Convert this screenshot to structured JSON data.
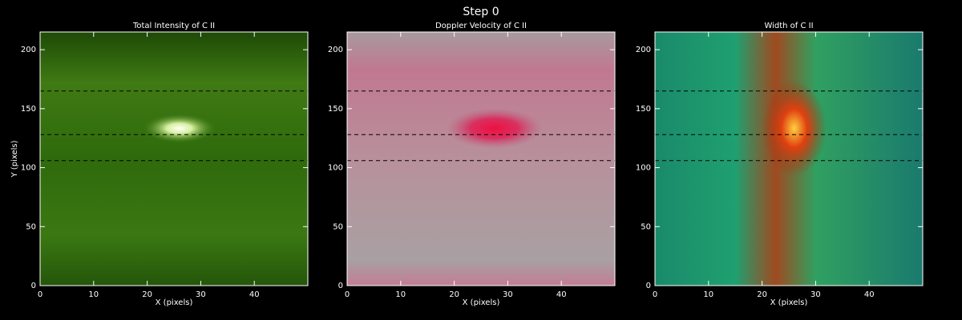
{
  "title": "Step 0",
  "chart_data": [
    {
      "type": "image",
      "title": "Total Intensity of C II",
      "xlabel": "X (pixels)",
      "ylabel": "Y (pixels)",
      "xlim": [
        0,
        50
      ],
      "ylim": [
        0,
        215
      ],
      "xticks": [
        0,
        10,
        20,
        30,
        40
      ],
      "yticks": [
        0,
        50,
        100,
        150,
        200
      ],
      "hlines": [
        165,
        128,
        106
      ]
    },
    {
      "type": "image",
      "title": "Doppler Velocity of C II",
      "xlabel": "X (pixels)",
      "xlim": [
        0,
        50
      ],
      "ylim": [
        0,
        215
      ],
      "xticks": [
        0,
        10,
        20,
        30,
        40
      ],
      "yticks": [
        0,
        50,
        100,
        150,
        200
      ],
      "hlines": [
        165,
        128,
        106
      ]
    },
    {
      "type": "image",
      "title": "Width of C II",
      "xlabel": "X (pixels)",
      "xlim": [
        0,
        50
      ],
      "ylim": [
        0,
        215
      ],
      "xticks": [
        0,
        10,
        20,
        30,
        40
      ],
      "yticks": [
        0,
        50,
        100,
        150,
        200
      ],
      "hlines": [
        165,
        128,
        106
      ]
    }
  ]
}
